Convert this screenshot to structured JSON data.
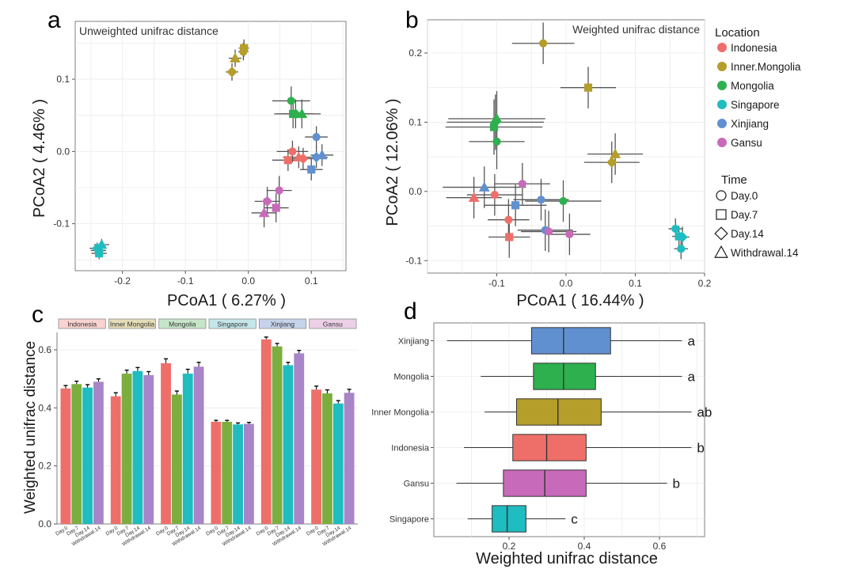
{
  "colors": {
    "Indonesia": "#EE6F6A",
    "Inner Mongolia": "#B59E2A",
    "Mongolia": "#2DB04D",
    "Singapore": "#1FBCC0",
    "Xinjiang": "#6090CF",
    "Gansu": "#C86ABA",
    "errorbar": "#555555",
    "grid": "#EBEBEB",
    "frame": "#7F7F7F"
  },
  "legend": {
    "location_title": "Location",
    "locations": [
      "Indonesia",
      "Inner.Mongolia",
      "Mongolia",
      "Singapore",
      "Xinjiang",
      "Gansu"
    ],
    "time_title": "Time",
    "times": [
      "Day.0",
      "Day.7",
      "Day.14",
      "Withdrawal.14"
    ],
    "time_shapes": [
      "circle",
      "square",
      "diamond",
      "triangle"
    ]
  },
  "chart_data": [
    {
      "panel": "a",
      "type": "scatter",
      "title": "Unweighted unifrac distance",
      "xlabel": "PCoA1 ( 6.27% )",
      "ylabel": "PCoA2 ( 4.46% )",
      "xlim": [
        -0.275,
        0.155
      ],
      "ylim": [
        -0.165,
        0.18
      ],
      "xticks": [
        -0.2,
        -0.1,
        0.0,
        0.1
      ],
      "xtick_labels": [
        "-0.2",
        "-0.1",
        "0.0",
        "0.1"
      ],
      "yticks": [
        -0.1,
        0.0,
        0.1
      ],
      "ytick_labels": [
        "-0.1",
        "0.0",
        "0.1"
      ],
      "points": [
        {
          "loc": "Inner Mongolia",
          "time": "Day.0",
          "x": -0.008,
          "y": 0.138,
          "xerr": 0.008,
          "yerr": 0.012
        },
        {
          "loc": "Inner Mongolia",
          "time": "Day.7",
          "x": -0.007,
          "y": 0.143,
          "xerr": 0.008,
          "yerr": 0.012
        },
        {
          "loc": "Inner Mongolia",
          "time": "Day.14",
          "x": -0.026,
          "y": 0.11,
          "xerr": 0.01,
          "yerr": 0.012
        },
        {
          "loc": "Inner Mongolia",
          "time": "Withdrawal.14",
          "x": -0.021,
          "y": 0.129,
          "xerr": 0.01,
          "yerr": 0.012
        },
        {
          "loc": "Mongolia",
          "time": "Day.0",
          "x": 0.068,
          "y": 0.07,
          "xerr": 0.03,
          "yerr": 0.02
        },
        {
          "loc": "Mongolia",
          "time": "Day.7",
          "x": 0.071,
          "y": 0.052,
          "xerr": 0.03,
          "yerr": 0.02
        },
        {
          "loc": "Mongolia",
          "time": "Day.14",
          "x": 0.075,
          "y": 0.052,
          "xerr": 0.03,
          "yerr": 0.02
        },
        {
          "loc": "Mongolia",
          "time": "Withdrawal.14",
          "x": 0.085,
          "y": 0.052,
          "xerr": 0.03,
          "yerr": 0.02
        },
        {
          "loc": "Xinjiang",
          "time": "Day.0",
          "x": 0.108,
          "y": 0.02,
          "xerr": 0.018,
          "yerr": 0.015
        },
        {
          "loc": "Xinjiang",
          "time": "Day.7",
          "x": 0.1,
          "y": -0.025,
          "xerr": 0.018,
          "yerr": 0.015
        },
        {
          "loc": "Xinjiang",
          "time": "Day.14",
          "x": 0.108,
          "y": -0.008,
          "xerr": 0.018,
          "yerr": 0.015
        },
        {
          "loc": "Xinjiang",
          "time": "Withdrawal.14",
          "x": 0.117,
          "y": -0.005,
          "xerr": 0.018,
          "yerr": 0.015
        },
        {
          "loc": "Indonesia",
          "time": "Day.0",
          "x": 0.07,
          "y": 0.0,
          "xerr": 0.025,
          "yerr": 0.015
        },
        {
          "loc": "Indonesia",
          "time": "Day.7",
          "x": 0.063,
          "y": -0.012,
          "xerr": 0.025,
          "yerr": 0.015
        },
        {
          "loc": "Indonesia",
          "time": "Day.14",
          "x": 0.087,
          "y": -0.01,
          "xerr": 0.025,
          "yerr": 0.015
        },
        {
          "loc": "Indonesia",
          "time": "Withdrawal.14",
          "x": 0.08,
          "y": -0.008,
          "xerr": 0.025,
          "yerr": 0.015
        },
        {
          "loc": "Gansu",
          "time": "Day.0",
          "x": 0.049,
          "y": -0.054,
          "xerr": 0.02,
          "yerr": 0.02
        },
        {
          "loc": "Gansu",
          "time": "Day.7",
          "x": 0.044,
          "y": -0.078,
          "xerr": 0.02,
          "yerr": 0.02
        },
        {
          "loc": "Gansu",
          "time": "Day.14",
          "x": 0.03,
          "y": -0.069,
          "xerr": 0.02,
          "yerr": 0.02
        },
        {
          "loc": "Gansu",
          "time": "Withdrawal.14",
          "x": 0.025,
          "y": -0.085,
          "xerr": 0.02,
          "yerr": 0.02
        },
        {
          "loc": "Singapore",
          "time": "Day.0",
          "x": -0.238,
          "y": -0.137,
          "xerr": 0.012,
          "yerr": 0.008
        },
        {
          "loc": "Singapore",
          "time": "Day.7",
          "x": -0.237,
          "y": -0.141,
          "xerr": 0.012,
          "yerr": 0.008
        },
        {
          "loc": "Singapore",
          "time": "Day.14",
          "x": -0.24,
          "y": -0.134,
          "xerr": 0.012,
          "yerr": 0.008
        },
        {
          "loc": "Singapore",
          "time": "Withdrawal.14",
          "x": -0.233,
          "y": -0.129,
          "xerr": 0.012,
          "yerr": 0.008
        }
      ]
    },
    {
      "panel": "b",
      "type": "scatter",
      "title": "Weighted unifrac distance",
      "xlabel": "PCoA1 ( 16.44% )",
      "ylabel": "PCoA2 ( 12.06% )",
      "xlim": [
        -0.2,
        0.2
      ],
      "ylim": [
        -0.118,
        0.248
      ],
      "xticks": [
        -0.1,
        0.0,
        0.1,
        0.2
      ],
      "xtick_labels": [
        "-0.1",
        "0.0",
        "0.1",
        "0.2"
      ],
      "yticks": [
        -0.1,
        0.0,
        0.1,
        0.2
      ],
      "ytick_labels": [
        "-0.1",
        "0.0",
        "0.1",
        "0.2"
      ],
      "points": [
        {
          "loc": "Inner Mongolia",
          "time": "Day.0",
          "x": -0.033,
          "y": 0.214,
          "xerr": 0.045,
          "yerr": 0.03
        },
        {
          "loc": "Inner Mongolia",
          "time": "Day.7",
          "x": 0.032,
          "y": 0.15,
          "xerr": 0.04,
          "yerr": 0.03
        },
        {
          "loc": "Inner Mongolia",
          "time": "Day.14",
          "x": 0.066,
          "y": 0.042,
          "xerr": 0.04,
          "yerr": 0.03
        },
        {
          "loc": "Inner Mongolia",
          "time": "Withdrawal.14",
          "x": 0.071,
          "y": 0.054,
          "xerr": 0.04,
          "yerr": 0.03
        },
        {
          "loc": "Mongolia",
          "time": "Day.0",
          "x": -0.1,
          "y": 0.072,
          "xerr": 0.04,
          "yerr": 0.04
        },
        {
          "loc": "Mongolia",
          "time": "Day.7",
          "x": -0.104,
          "y": 0.093,
          "xerr": 0.07,
          "yerr": 0.04
        },
        {
          "loc": "Mongolia",
          "time": "Day.14",
          "x": -0.102,
          "y": 0.1,
          "xerr": 0.07,
          "yerr": 0.04
        },
        {
          "loc": "Mongolia",
          "time": "Withdrawal.14",
          "x": -0.1,
          "y": 0.105,
          "xerr": 0.07,
          "yerr": 0.04
        },
        {
          "loc": "Mongolia",
          "time": "Day.0",
          "x": -0.004,
          "y": -0.014,
          "xerr": 0.055,
          "yerr": 0.03
        },
        {
          "loc": "Xinjiang",
          "time": "Withdrawal.14",
          "x": -0.118,
          "y": 0.006,
          "xerr": 0.06,
          "yerr": 0.03
        },
        {
          "loc": "Xinjiang",
          "time": "Day.0",
          "x": -0.036,
          "y": -0.012,
          "xerr": 0.04,
          "yerr": 0.03
        },
        {
          "loc": "Xinjiang",
          "time": "Day.7",
          "x": -0.073,
          "y": -0.02,
          "xerr": 0.045,
          "yerr": 0.03
        },
        {
          "loc": "Xinjiang",
          "time": "Day.0",
          "x": -0.03,
          "y": -0.056,
          "xerr": 0.04,
          "yerr": 0.03
        },
        {
          "loc": "Indonesia",
          "time": "Day.0",
          "x": -0.103,
          "y": -0.005,
          "xerr": 0.04,
          "yerr": 0.03
        },
        {
          "loc": "Indonesia",
          "time": "Withdrawal.14",
          "x": -0.133,
          "y": -0.009,
          "xerr": 0.04,
          "yerr": 0.03
        },
        {
          "loc": "Indonesia",
          "time": "Day.0",
          "x": -0.083,
          "y": -0.041,
          "xerr": 0.03,
          "yerr": 0.03
        },
        {
          "loc": "Indonesia",
          "time": "Day.7",
          "x": -0.082,
          "y": -0.066,
          "xerr": 0.03,
          "yerr": 0.03
        },
        {
          "loc": "Gansu",
          "time": "Day.0",
          "x": -0.063,
          "y": 0.011,
          "xerr": 0.04,
          "yerr": 0.03
        },
        {
          "loc": "Gansu",
          "time": "Day.0",
          "x": -0.025,
          "y": -0.058,
          "xerr": 0.04,
          "yerr": 0.03
        },
        {
          "loc": "Gansu",
          "time": "Day.0",
          "x": 0.005,
          "y": -0.062,
          "xerr": 0.03,
          "yerr": 0.03
        },
        {
          "loc": "Singapore",
          "time": "Day.0",
          "x": 0.158,
          "y": -0.054,
          "xerr": 0.01,
          "yerr": 0.015
        },
        {
          "loc": "Singapore",
          "time": "Day.7",
          "x": 0.163,
          "y": -0.065,
          "xerr": 0.01,
          "yerr": 0.015
        },
        {
          "loc": "Singapore",
          "time": "Day.14",
          "x": 0.168,
          "y": -0.066,
          "xerr": 0.01,
          "yerr": 0.015
        },
        {
          "loc": "Singapore",
          "time": "Day.0",
          "x": 0.166,
          "y": -0.083,
          "xerr": 0.01,
          "yerr": 0.015
        }
      ]
    },
    {
      "panel": "c",
      "type": "bar",
      "ylabel": "Weighted unifrac distance",
      "xlabel": "",
      "ylim": [
        0,
        0.66
      ],
      "yticks": [
        0.0,
        0.2,
        0.4,
        0.6
      ],
      "ytick_labels": [
        "0.0",
        "0.2",
        "0.4",
        "0.6"
      ],
      "time_labels": [
        "Day.0",
        "Day.7",
        "Day.14",
        "Withdrawal.14"
      ],
      "series_colors": [
        "#EE6F6A",
        "#7CAE3F",
        "#1FBCC0",
        "#A785C8"
      ],
      "groups": [
        {
          "name": "Indonesia",
          "values": [
            0.467,
            0.482,
            0.47,
            0.49
          ],
          "errors": [
            0.01,
            0.01,
            0.01,
            0.01
          ]
        },
        {
          "name": "Inner Mongolia",
          "values": [
            0.44,
            0.518,
            0.527,
            0.513
          ],
          "errors": [
            0.012,
            0.012,
            0.012,
            0.012
          ]
        },
        {
          "name": "Mongolia",
          "values": [
            0.554,
            0.446,
            0.518,
            0.542
          ],
          "errors": [
            0.015,
            0.012,
            0.015,
            0.015
          ]
        },
        {
          "name": "Singapore",
          "values": [
            0.352,
            0.352,
            0.343,
            0.345
          ],
          "errors": [
            0.005,
            0.005,
            0.005,
            0.005
          ]
        },
        {
          "name": "Xinjiang",
          "values": [
            0.636,
            0.612,
            0.547,
            0.588
          ],
          "errors": [
            0.008,
            0.01,
            0.01,
            0.01
          ]
        },
        {
          "name": "Gansu",
          "values": [
            0.463,
            0.45,
            0.415,
            0.452
          ],
          "errors": [
            0.012,
            0.012,
            0.01,
            0.012
          ]
        }
      ]
    },
    {
      "panel": "d",
      "type": "boxplot",
      "xlabel": "Weighted unifrac distance",
      "ylabel": "",
      "xlim": [
        0.0,
        0.72
      ],
      "xticks": [
        0.2,
        0.4,
        0.6
      ],
      "xtick_labels": [
        "0.2",
        "0.4",
        "0.6"
      ],
      "boxes": [
        {
          "name": "Xinjiang",
          "min": 0.035,
          "q1": 0.26,
          "median": 0.345,
          "q3": 0.47,
          "max": 0.66,
          "letter": "a"
        },
        {
          "name": "Mongolia",
          "min": 0.125,
          "q1": 0.265,
          "median": 0.345,
          "q3": 0.43,
          "max": 0.66,
          "letter": "a"
        },
        {
          "name": "Inner Mongolia",
          "min": 0.135,
          "q1": 0.22,
          "median": 0.33,
          "q3": 0.445,
          "max": 0.685,
          "letter": "ab"
        },
        {
          "name": "Indonesia",
          "min": 0.08,
          "q1": 0.21,
          "median": 0.3,
          "q3": 0.405,
          "max": 0.685,
          "letter": "b"
        },
        {
          "name": "Gansu",
          "min": 0.06,
          "q1": 0.185,
          "median": 0.295,
          "q3": 0.405,
          "max": 0.62,
          "letter": "b"
        },
        {
          "name": "Singapore",
          "min": 0.09,
          "q1": 0.155,
          "median": 0.195,
          "q3": 0.245,
          "max": 0.35,
          "letter": "c"
        }
      ]
    }
  ],
  "panel_labels": [
    "a",
    "b",
    "c",
    "d"
  ]
}
